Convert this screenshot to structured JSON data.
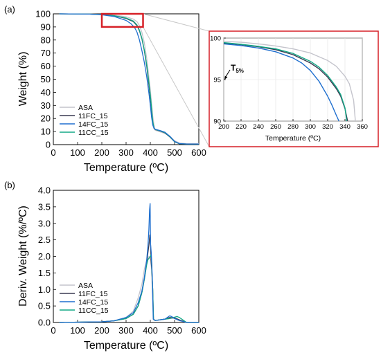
{
  "panels": {
    "a": "(a)",
    "b": "(b)"
  },
  "t5_label": {
    "main": "T",
    "sub": "5%"
  },
  "colors": {
    "ASA": "#c4c4cc",
    "11FC_15": "#3a3a52",
    "14FC_15": "#1f6fcf",
    "11CC_15": "#12a886",
    "highlight": "#d61f26"
  },
  "chart_data": [
    {
      "id": "a",
      "type": "line",
      "xlabel": "Temperature (ºC)",
      "ylabel": "Weight (%)",
      "xlim": [
        0,
        600
      ],
      "ylim": [
        0,
        100
      ],
      "xticks": [
        0,
        100,
        200,
        300,
        400,
        500,
        600
      ],
      "yticks": [
        0,
        10,
        20,
        30,
        40,
        50,
        60,
        70,
        80,
        90,
        100
      ],
      "legend": {
        "placement": "bottom-left",
        "entries": [
          "ASA",
          "11FC_15",
          "14FC_15",
          "11CC_15"
        ]
      },
      "zoom_box": {
        "x": [
          200,
          370
        ],
        "y": [
          90,
          100
        ]
      },
      "series": [
        {
          "name": "ASA",
          "x": [
            25,
            150,
            200,
            250,
            300,
            330,
            345,
            355,
            365,
            375,
            385,
            395,
            400,
            405,
            410,
            415,
            420,
            440,
            460,
            480,
            500,
            520,
            550,
            600
          ],
          "y": [
            100,
            99.8,
            99.6,
            99.0,
            97.8,
            96.0,
            94.0,
            91.0,
            86.0,
            78.0,
            66.0,
            50.0,
            42.0,
            32.0,
            22.0,
            15.0,
            11.0,
            9.8,
            8.5,
            6.5,
            3.0,
            1.2,
            0.8,
            0.8
          ]
        },
        {
          "name": "11FC_15",
          "x": [
            25,
            150,
            200,
            250,
            300,
            330,
            345,
            355,
            365,
            375,
            385,
            395,
            400,
            405,
            410,
            415,
            420,
            440,
            460,
            480,
            500,
            520,
            550,
            600
          ],
          "y": [
            100,
            99.8,
            99.4,
            98.5,
            96.5,
            94.0,
            91.0,
            87.0,
            81.0,
            72.0,
            60.0,
            44.0,
            36.0,
            26.0,
            17.0,
            12.5,
            11.5,
            10.5,
            9.0,
            6.0,
            2.2,
            0.6,
            0.5,
            0.5
          ]
        },
        {
          "name": "14FC_15",
          "x": [
            25,
            150,
            200,
            250,
            300,
            320,
            335,
            345,
            355,
            365,
            375,
            385,
            395,
            400,
            405,
            410,
            415,
            420,
            440,
            460,
            480,
            500,
            520,
            550,
            600
          ],
          "y": [
            100,
            99.8,
            99.3,
            98.0,
            95.0,
            92.5,
            89.5,
            86.0,
            80.0,
            72.0,
            63.0,
            52.0,
            38.0,
            30.0,
            21.0,
            15.0,
            12.5,
            11.8,
            10.8,
            9.5,
            6.5,
            2.5,
            0.8,
            0.5,
            0.5
          ]
        },
        {
          "name": "11CC_15",
          "x": [
            25,
            150,
            200,
            250,
            300,
            330,
            345,
            355,
            365,
            375,
            385,
            395,
            400,
            405,
            410,
            415,
            420,
            440,
            460,
            480,
            500,
            520,
            550,
            600
          ],
          "y": [
            100,
            99.8,
            99.4,
            98.6,
            96.8,
            94.5,
            91.5,
            87.5,
            81.5,
            72.5,
            61.0,
            46.0,
            38.0,
            28.0,
            18.0,
            12.8,
            11.6,
            10.6,
            9.2,
            6.2,
            2.3,
            0.7,
            0.5,
            0.5
          ]
        }
      ]
    },
    {
      "id": "a-inset",
      "type": "line",
      "xlabel": "Temperature (ºC)",
      "ylabel": "",
      "xlim": [
        200,
        360
      ],
      "ylim": [
        90,
        100
      ],
      "xticks": [
        200,
        220,
        240,
        260,
        280,
        300,
        320,
        340,
        360
      ],
      "yticks": [
        90,
        95,
        100
      ],
      "grid": true,
      "series": [
        {
          "name": "ASA",
          "x": [
            200,
            220,
            240,
            260,
            280,
            300,
            320,
            330,
            340,
            345,
            350,
            352
          ],
          "y": [
            99.6,
            99.5,
            99.3,
            99.05,
            98.7,
            98.2,
            97.3,
            96.6,
            95.4,
            94.5,
            92.5,
            90
          ]
        },
        {
          "name": "11FC_15",
          "x": [
            200,
            220,
            240,
            260,
            280,
            300,
            310,
            320,
            330,
            335,
            340,
            343
          ],
          "y": [
            99.4,
            99.2,
            98.95,
            98.6,
            98.0,
            97.0,
            96.3,
            95.3,
            93.9,
            93.0,
            91.5,
            90
          ]
        },
        {
          "name": "14FC_15",
          "x": [
            200,
            220,
            240,
            260,
            280,
            290,
            300,
            310,
            320,
            325,
            330,
            333
          ],
          "y": [
            99.3,
            99.1,
            98.8,
            98.35,
            97.6,
            97.0,
            96.1,
            94.8,
            93.0,
            91.9,
            90.7,
            90
          ]
        },
        {
          "name": "11CC_15",
          "x": [
            200,
            220,
            240,
            260,
            280,
            300,
            310,
            320,
            330,
            335,
            340,
            342
          ],
          "y": [
            99.45,
            99.25,
            99.0,
            98.7,
            98.15,
            97.2,
            96.5,
            95.5,
            94.1,
            93.2,
            91.6,
            90
          ]
        }
      ]
    },
    {
      "id": "b",
      "type": "line",
      "xlabel": "Temperature (ºC)",
      "ylabel": "Deriv. Weight (%/ºC)",
      "xlim": [
        0,
        600
      ],
      "ylim": [
        0,
        4.0
      ],
      "xticks": [
        0,
        100,
        200,
        300,
        400,
        500,
        600
      ],
      "yticks": [
        0.0,
        0.5,
        1.0,
        1.5,
        2.0,
        2.5,
        3.0,
        3.5,
        4.0
      ],
      "legend": {
        "placement": "bottom-left",
        "entries": [
          "ASA",
          "11FC_15",
          "14FC_15",
          "11CC_15"
        ]
      },
      "series": [
        {
          "name": "ASA",
          "x": [
            25,
            200,
            250,
            300,
            330,
            350,
            365,
            375,
            385,
            390,
            395,
            400,
            405,
            410,
            413,
            420,
            460,
            480,
            500,
            520,
            550,
            600
          ],
          "y": [
            0,
            0.02,
            0.05,
            0.15,
            0.35,
            0.75,
            1.15,
            1.6,
            1.9,
            1.95,
            2.0,
            1.9,
            1.6,
            0.6,
            0.08,
            0.06,
            0.1,
            0.12,
            0.12,
            0.05,
            0,
            0
          ]
        },
        {
          "name": "11FC_15",
          "x": [
            25,
            200,
            250,
            300,
            330,
            350,
            365,
            375,
            385,
            390,
            395,
            398,
            400,
            403,
            406,
            410,
            413,
            420,
            460,
            480,
            500,
            520,
            550,
            600
          ],
          "y": [
            0,
            0.02,
            0.05,
            0.12,
            0.25,
            0.5,
            0.9,
            1.3,
            1.8,
            2.1,
            2.4,
            2.65,
            2.6,
            1.9,
            1.6,
            1.0,
            0.1,
            0.06,
            0.1,
            0.15,
            0.14,
            0.08,
            0,
            0
          ]
        },
        {
          "name": "14FC_15",
          "x": [
            25,
            200,
            250,
            300,
            330,
            350,
            365,
            375,
            385,
            390,
            394,
            397,
            399,
            401,
            404,
            408,
            412,
            420,
            460,
            470,
            480,
            490,
            500,
            520,
            550,
            600
          ],
          "y": [
            0,
            0.02,
            0.05,
            0.15,
            0.3,
            0.6,
            0.95,
            1.35,
            1.9,
            2.3,
            2.8,
            3.4,
            3.6,
            2.4,
            2.1,
            1.4,
            0.1,
            0.06,
            0.1,
            0.15,
            0.2,
            0.17,
            0.12,
            0.06,
            0,
            0
          ]
        },
        {
          "name": "11CC_15",
          "x": [
            25,
            200,
            250,
            300,
            330,
            350,
            365,
            375,
            385,
            390,
            395,
            400,
            403,
            405,
            407,
            410,
            413,
            420,
            460,
            480,
            500,
            510,
            520,
            540,
            550,
            600
          ],
          "y": [
            0,
            0.02,
            0.05,
            0.12,
            0.25,
            0.5,
            0.9,
            1.3,
            1.75,
            1.9,
            1.95,
            2.0,
            2.05,
            1.9,
            1.5,
            1.0,
            0.1,
            0.06,
            0.1,
            0.12,
            0.16,
            0.18,
            0.15,
            0.05,
            0,
            0
          ]
        }
      ]
    }
  ]
}
